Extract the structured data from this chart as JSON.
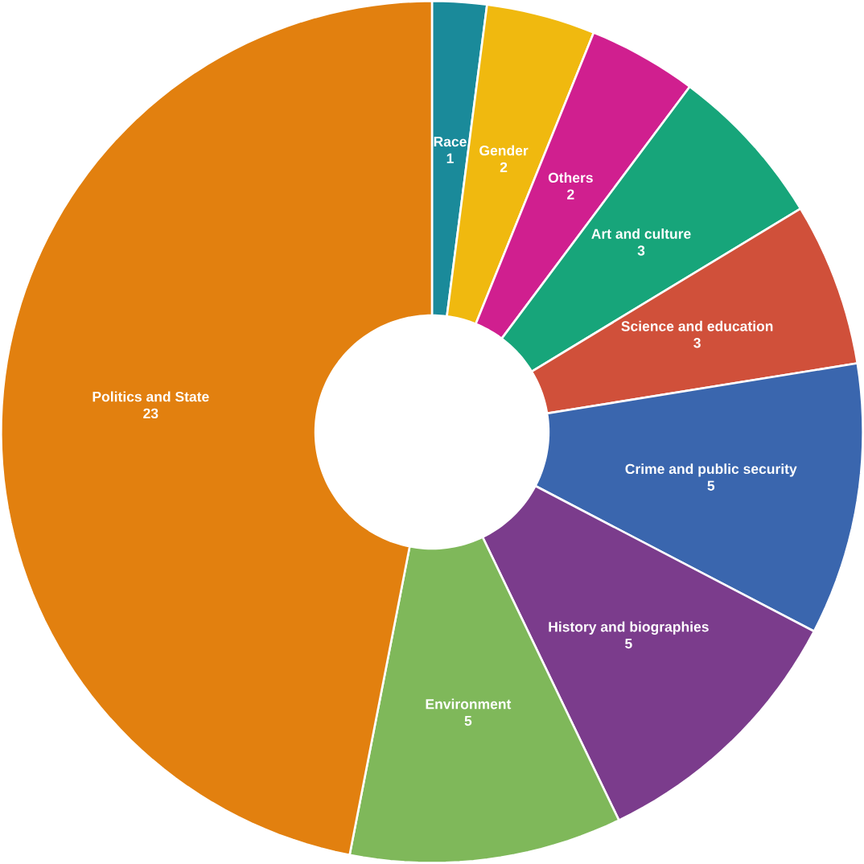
{
  "chart_data": {
    "type": "donut",
    "categories": [
      "Race",
      "Gender",
      "Others",
      "Art and culture",
      "Science and education",
      "Crime and public security",
      "History and biographies",
      "Environment",
      "Politics and State"
    ],
    "values": [
      1,
      2,
      2,
      3,
      3,
      5,
      5,
      5,
      23
    ],
    "colors": [
      "#1a8a9a",
      "#f0b90f",
      "#d01f8f",
      "#17a57a",
      "#d0503a",
      "#3a66ae",
      "#7b3c8c",
      "#7fb85a",
      "#e2800f"
    ],
    "data_labels": true
  }
}
